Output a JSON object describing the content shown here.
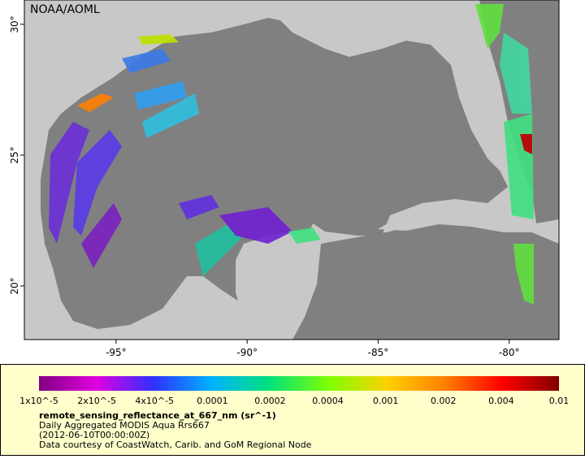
{
  "map": {
    "label": "NOAA/AOML",
    "lon_range": [
      -98.5,
      -78.1
    ],
    "lat_range": [
      17.95,
      30.93
    ],
    "lon_ticks": [
      {
        "value": -95,
        "label": "-95°"
      },
      {
        "value": -90,
        "label": "-90°"
      },
      {
        "value": -85,
        "label": "-85°"
      },
      {
        "value": -80,
        "label": "-80°"
      }
    ],
    "lat_ticks": [
      {
        "value": 20,
        "label": "20°"
      },
      {
        "value": 25,
        "label": "25°"
      },
      {
        "value": 30,
        "label": "30°"
      }
    ]
  },
  "colorbar": {
    "ticks": [
      "1x10^-5",
      "2x10^-5",
      "4x10^-5",
      "0.0001",
      "0.0002",
      "0.0004",
      "0.001",
      "0.002",
      "0.004",
      "0.01"
    ]
  },
  "legend": {
    "variable": "remote_sensing_reflectance_at_667_nm (sr^-1)",
    "lines": [
      "Daily Aggregated MODIS Aqua Rrs667",
      "(2012-06-10T00:00:00Z)",
      "Data courtesy of CoastWatch, Carib. and GoM Regional Node"
    ]
  }
}
